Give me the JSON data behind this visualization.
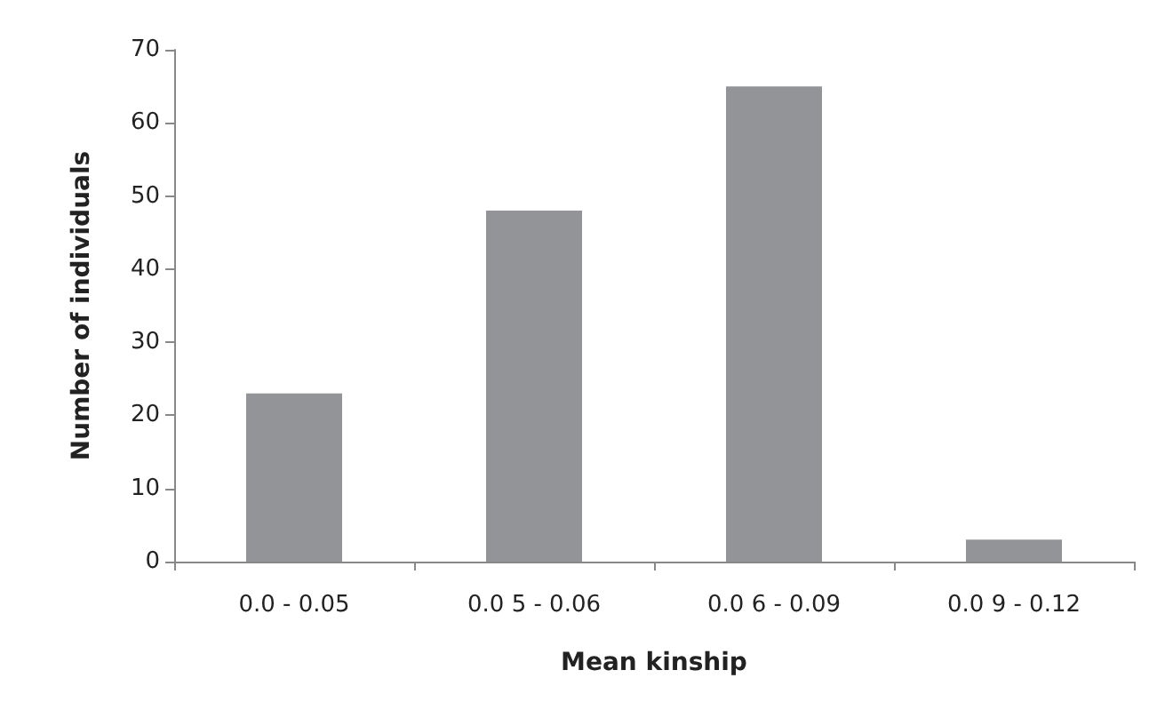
{
  "chart_data": {
    "type": "bar",
    "xlabel": "Mean kinship",
    "ylabel": "Number of individuals",
    "categories": [
      "0.0 - 0.05",
      "0.0 5 - 0.06",
      "0.0 6 - 0.09",
      "0.0 9 - 0.12"
    ],
    "values": [
      23,
      48,
      65,
      3
    ],
    "color": "#939498",
    "ylim": [
      0,
      70
    ],
    "yticks": [
      0,
      10,
      20,
      30,
      40,
      50,
      60,
      70
    ],
    "grid": false
  }
}
